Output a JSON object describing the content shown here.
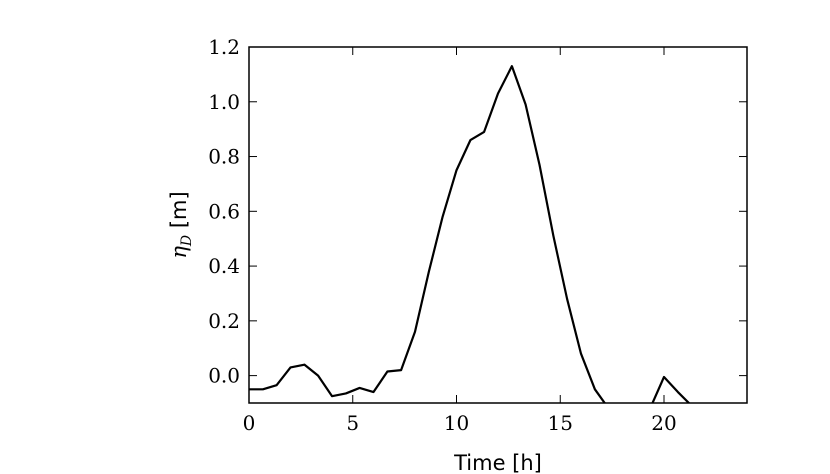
{
  "chart_data": {
    "type": "line",
    "title": "",
    "xlabel": "Time [h]",
    "ylabel": {
      "symbol": "η",
      "subscript": "D",
      "unit": " [m]"
    },
    "xlim": [
      0,
      24
    ],
    "ylim": [
      -0.1,
      1.2
    ],
    "xticks": [
      0,
      5,
      10,
      15,
      20
    ],
    "yticks": [
      0.0,
      0.2,
      0.4,
      0.6,
      0.8,
      1.0,
      1.2
    ],
    "xtick_labels": [
      "0",
      "5",
      "10",
      "15",
      "20"
    ],
    "ytick_labels": [
      "0.0",
      "0.2",
      "0.4",
      "0.6",
      "0.8",
      "1.0",
      "1.2"
    ],
    "grid": false,
    "legend": null,
    "line_color": "#000000",
    "series": [
      {
        "x": [
          0,
          0.67,
          1.33,
          2.0,
          2.67,
          3.33,
          4.0,
          4.67,
          5.33,
          6.0,
          6.67,
          7.33,
          8.0,
          8.67,
          9.33,
          10.0,
          10.67,
          11.33,
          12.0,
          12.67,
          13.33,
          14.0,
          14.67,
          15.33,
          16.0,
          16.67,
          17.33,
          18.0,
          18.67,
          19.33,
          20.0,
          20.67,
          21.33,
          22.0
        ],
        "y": [
          -0.05,
          -0.05,
          -0.035,
          0.03,
          0.04,
          0.0,
          -0.075,
          -0.065,
          -0.045,
          -0.06,
          0.015,
          0.02,
          0.16,
          0.38,
          0.58,
          0.75,
          0.86,
          0.89,
          1.03,
          1.13,
          0.99,
          0.77,
          0.51,
          0.28,
          0.08,
          -0.05,
          -0.12,
          -0.2,
          -0.2,
          -0.12,
          -0.005,
          -0.06,
          -0.11,
          -0.16
        ]
      }
    ]
  }
}
